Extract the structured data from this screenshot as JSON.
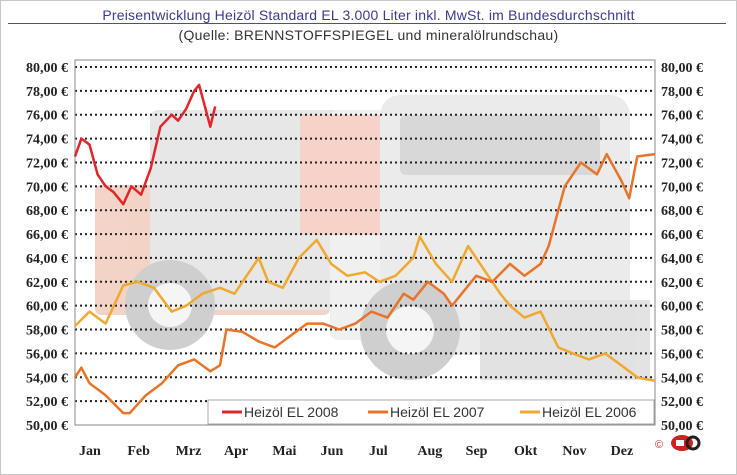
{
  "chart_data": {
    "type": "line",
    "title": "Preisentwicklung Heizöl Standard EL 3.000 Liter inkl. MwSt. im Bundesdurchschnitt",
    "subtitle": "(Quelle: BRENNSTOFFSPIEGEL und mineralölrundschau)",
    "xlabel": "",
    "ylabel": "",
    "x_tick_labels": [
      "Jan",
      "Feb",
      "Mrz",
      "Apr",
      "Mai",
      "Jun",
      "Jul",
      "Aug",
      "Sep",
      "Okt",
      "Nov",
      "Dez"
    ],
    "y_tick_labels": [
      "50,00 €",
      "52,00 €",
      "54,00 €",
      "56,00 €",
      "58,00 €",
      "60,00 €",
      "62,00 €",
      "64,00 €",
      "66,00 €",
      "68,00 €",
      "70,00 €",
      "72,00 €",
      "74,00 €",
      "76,00 €",
      "78,00 €",
      "80,00 €"
    ],
    "ylim": [
      50,
      80
    ],
    "y_axis_both_sides": true,
    "grid": "horizontal dotted",
    "legend_placement": "bottom-right",
    "copyright": "©",
    "series": [
      {
        "name": "Heizöl EL 2008",
        "color": "#e0262a",
        "x": [
          "01-01",
          "01-05",
          "01-10",
          "01-15",
          "01-20",
          "01-25",
          "02-01",
          "02-06",
          "02-12",
          "02-18",
          "02-24",
          "03-01",
          "03-05",
          "03-10",
          "03-15",
          "03-18",
          "03-21",
          "03-25",
          "03-28"
        ],
        "y": [
          72.5,
          74,
          73.5,
          71,
          70,
          69.5,
          68.5,
          70,
          69.3,
          71.5,
          75,
          76,
          75.5,
          76.5,
          78,
          78.5,
          77,
          75,
          76.7
        ]
      },
      {
        "name": "Heizöl EL 2007",
        "color": "#e8742a",
        "x": [
          "01-01",
          "01-05",
          "01-10",
          "01-20",
          "02-01",
          "02-05",
          "02-15",
          "02-25",
          "03-05",
          "03-15",
          "03-25",
          "04-01",
          "04-05",
          "04-15",
          "04-25",
          "05-05",
          "05-15",
          "05-25",
          "06-05",
          "06-15",
          "06-25",
          "07-05",
          "07-15",
          "07-25",
          "08-01",
          "08-10",
          "08-20",
          "08-25",
          "09-01",
          "09-10",
          "09-20",
          "10-01",
          "10-10",
          "10-20",
          "10-25",
          "11-01",
          "11-05",
          "11-15",
          "11-25",
          "12-01",
          "12-10",
          "12-15",
          "12-20",
          "12-31"
        ],
        "y": [
          54,
          54.8,
          53.5,
          52.5,
          51,
          51,
          52.5,
          53.5,
          55,
          55.5,
          54.5,
          55,
          58,
          57.8,
          57,
          56.5,
          57.5,
          58.5,
          58.5,
          58,
          58.5,
          59.5,
          59,
          61,
          60.5,
          62,
          61,
          60,
          61,
          62.5,
          62,
          63.5,
          62.5,
          63.5,
          65,
          68,
          70,
          72,
          71,
          72.7,
          70.5,
          69,
          72.5,
          72.7
        ]
      },
      {
        "name": "Heizöl EL 2006",
        "color": "#f0a830",
        "x": [
          "01-01",
          "01-10",
          "01-20",
          "02-01",
          "02-10",
          "02-20",
          "03-01",
          "03-10",
          "03-20",
          "04-01",
          "04-10",
          "04-20",
          "04-25",
          "05-01",
          "05-10",
          "05-20",
          "06-01",
          "06-10",
          "06-20",
          "07-01",
          "07-10",
          "07-20",
          "08-01",
          "08-05",
          "08-15",
          "08-25",
          "09-05",
          "09-15",
          "09-25",
          "10-01",
          "10-10",
          "10-20",
          "11-01",
          "11-10",
          "11-20",
          "11-30",
          "12-10",
          "12-20",
          "12-31"
        ],
        "y": [
          58.3,
          59.5,
          58.5,
          61.7,
          62,
          61.5,
          59.5,
          60,
          61,
          61.5,
          61,
          63,
          64,
          62,
          61.5,
          64,
          65.5,
          63.5,
          62.5,
          62.8,
          62,
          62.5,
          64,
          65.8,
          63.5,
          62,
          65,
          63,
          61,
          60,
          59,
          59.5,
          56.5,
          56,
          55.5,
          56,
          55,
          54,
          53.7
        ]
      }
    ]
  }
}
